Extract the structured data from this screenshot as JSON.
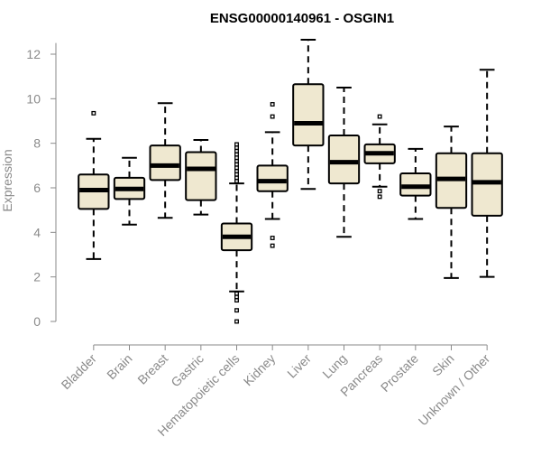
{
  "chart_data": {
    "type": "boxplot",
    "title": "ENSG00000140961 - OSGIN1",
    "xlabel": "",
    "ylabel": "Expression",
    "ylim": [
      0,
      12.5
    ],
    "yticks": [
      0,
      2,
      4,
      6,
      8,
      10,
      12
    ],
    "box_fill": "#efe8d0",
    "box_stroke": "#000000",
    "categories": [
      "Bladder",
      "Brain",
      "Breast",
      "Gastric",
      "Hematopoietic cells",
      "Kidney",
      "Liver",
      "Lung",
      "Pancreas",
      "Prostate",
      "Skin",
      "Unknown / Other"
    ],
    "boxes": [
      {
        "category": "Bladder",
        "whisker_low": 2.8,
        "q1": 5.05,
        "median": 5.9,
        "q3": 6.6,
        "whisker_high": 8.2,
        "outliers": [
          9.35
        ]
      },
      {
        "category": "Brain",
        "whisker_low": 4.35,
        "q1": 5.5,
        "median": 5.95,
        "q3": 6.45,
        "whisker_high": 7.35,
        "outliers": []
      },
      {
        "category": "Breast",
        "whisker_low": 4.65,
        "q1": 6.35,
        "median": 7.0,
        "q3": 7.9,
        "whisker_high": 9.8,
        "outliers": []
      },
      {
        "category": "Gastric",
        "whisker_low": 4.8,
        "q1": 5.45,
        "median": 6.85,
        "q3": 7.6,
        "whisker_high": 8.15,
        "outliers": []
      },
      {
        "category": "Hematopoietic cells",
        "whisker_low": 1.35,
        "q1": 3.2,
        "median": 3.8,
        "q3": 4.4,
        "whisker_high": 6.2,
        "outliers": [
          0.0,
          0.5,
          0.95,
          1.1,
          1.25,
          6.3,
          6.45,
          6.6,
          6.75,
          6.9,
          7.05,
          7.2,
          7.35,
          7.5,
          7.65,
          7.8,
          7.95
        ]
      },
      {
        "category": "Kidney",
        "whisker_low": 4.6,
        "q1": 5.85,
        "median": 6.3,
        "q3": 7.0,
        "whisker_high": 8.5,
        "outliers": [
          3.4,
          3.75,
          9.2,
          9.75
        ]
      },
      {
        "category": "Liver",
        "whisker_low": 5.95,
        "q1": 7.9,
        "median": 8.9,
        "q3": 10.65,
        "whisker_high": 12.65,
        "outliers": []
      },
      {
        "category": "Lung",
        "whisker_low": 3.8,
        "q1": 6.2,
        "median": 7.15,
        "q3": 8.35,
        "whisker_high": 10.5,
        "outliers": []
      },
      {
        "category": "Pancreas",
        "whisker_low": 6.05,
        "q1": 7.1,
        "median": 7.55,
        "q3": 7.95,
        "whisker_high": 8.85,
        "outliers": [
          5.6,
          5.85,
          9.2
        ]
      },
      {
        "category": "Prostate",
        "whisker_low": 4.6,
        "q1": 5.65,
        "median": 6.05,
        "q3": 6.65,
        "whisker_high": 7.75,
        "outliers": []
      },
      {
        "category": "Skin",
        "whisker_low": 1.95,
        "q1": 5.1,
        "median": 6.4,
        "q3": 7.55,
        "whisker_high": 8.75,
        "outliers": []
      },
      {
        "category": "Unknown / Other",
        "whisker_low": 2.0,
        "q1": 4.75,
        "median": 6.25,
        "q3": 7.55,
        "whisker_high": 11.3,
        "outliers": []
      }
    ]
  }
}
